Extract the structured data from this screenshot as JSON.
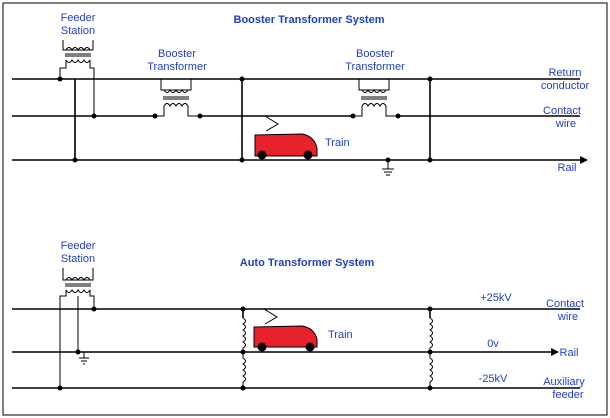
{
  "booster_system": {
    "title": "Booster Transformer System",
    "feeder_station": [
      "Feeder",
      "Station"
    ],
    "booster_1": [
      "Booster",
      "Transformer"
    ],
    "booster_2": [
      "Booster",
      "Transformer"
    ],
    "train": "Train",
    "lines": {
      "return": [
        "Return",
        "conductor"
      ],
      "contact": [
        "Contact",
        "wire"
      ],
      "rail": "Rail"
    }
  },
  "auto_system": {
    "title": "Auto Transformer System",
    "feeder_station": [
      "Feeder",
      "Station"
    ],
    "train": "Train",
    "lines": {
      "contact": [
        "Contact",
        "wire"
      ],
      "rail": "Rail",
      "aux": [
        "Auxiliary",
        "feeder"
      ]
    },
    "voltages": {
      "plus": "+25kV",
      "zero": "0v",
      "minus": "-25kV"
    }
  },
  "colors": {
    "label_text": "#1f3fc4",
    "train_body": "#e8222b",
    "wire": "#000000"
  }
}
